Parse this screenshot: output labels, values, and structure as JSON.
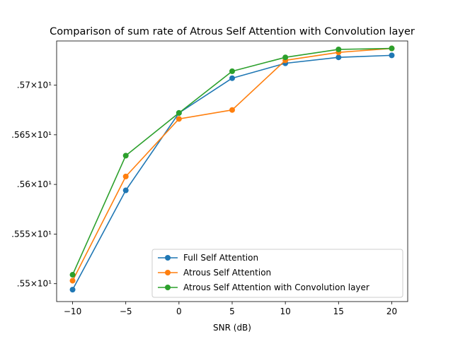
{
  "chart_data": {
    "type": "line",
    "title": "Comparison of sum rate of Atrous Self Attention with Convolution layer",
    "xlabel": "SNR (dB)",
    "ylabel": "",
    "x": [
      -10,
      -5,
      0,
      5,
      10,
      15,
      20
    ],
    "xticks": [
      -10,
      -5,
      0,
      5,
      10,
      15,
      20
    ],
    "xtick_labels": [
      "−10",
      "−5",
      "0",
      "5",
      "10",
      "15",
      "20"
    ],
    "yticks": [
      15.5,
      15.55,
      15.6,
      15.65,
      15.7
    ],
    "ytick_labels": [
      ".55×10¹",
      ".555×10¹",
      ".56×10¹",
      ".565×10¹",
      ".57×10¹"
    ],
    "xlim": [
      -11.5,
      21.5
    ],
    "ylim": [
      15.482,
      15.7445
    ],
    "grid": false,
    "legend_position": "lower-right",
    "series": [
      {
        "name": "Full Self Attention",
        "color": "#1f77b4",
        "values": [
          15.494,
          15.594,
          15.672,
          15.707,
          15.722,
          15.728,
          15.73
        ]
      },
      {
        "name": "Atrous Self Attention",
        "color": "#ff7f0e",
        "values": [
          15.503,
          15.608,
          15.666,
          15.675,
          15.725,
          15.733,
          15.737
        ]
      },
      {
        "name": "Atrous Self Attention with Convolution layer",
        "color": "#2ca02c",
        "values": [
          15.509,
          15.629,
          15.672,
          15.714,
          15.728,
          15.736,
          15.737
        ]
      }
    ]
  }
}
